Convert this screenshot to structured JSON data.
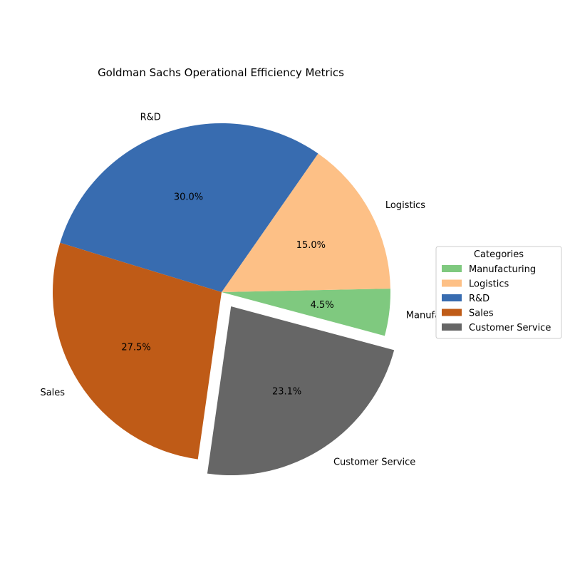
{
  "chart_data": {
    "type": "pie",
    "title": "Goldman Sachs Operational Efficiency Metrics",
    "categories": [
      "Manufacturing",
      "Logistics",
      "R&D",
      "Sales",
      "Customer Service"
    ],
    "values": [
      4.5,
      15.0,
      30.0,
      27.5,
      23.1
    ],
    "percent_labels": [
      "4.5%",
      "15.0%",
      "30.0%",
      "27.5%",
      "23.1%"
    ],
    "colors": [
      "#7fc97f",
      "#fdc086",
      "#386cb0",
      "#bf5b17",
      "#666666"
    ],
    "exploded": [
      "Customer Service"
    ],
    "start_angle_deg": -15,
    "direction": "counterclockwise",
    "legend": {
      "title": "Categories",
      "placement": "center-right"
    }
  }
}
